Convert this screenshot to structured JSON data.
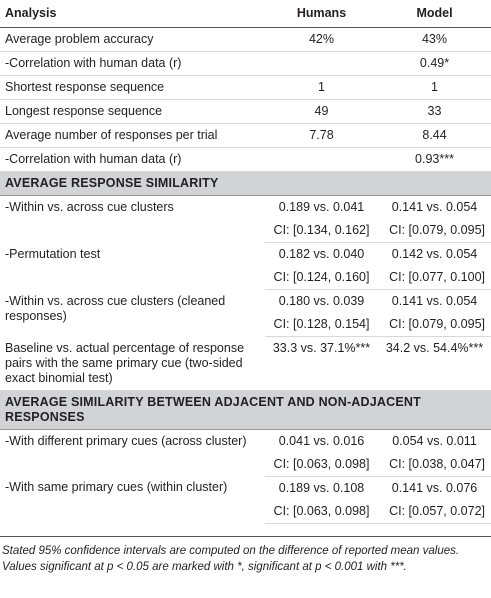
{
  "table": {
    "header": [
      "Analysis",
      "Humans",
      "Model"
    ],
    "rows": [
      {
        "label": "Average problem accuracy",
        "humans": [
          "42%"
        ],
        "model": [
          "43%"
        ]
      },
      {
        "label": "-Correlation with human data (r)",
        "model": [
          "0.49*"
        ]
      },
      {
        "label": "Shortest response sequence",
        "humans": [
          "1"
        ],
        "model": [
          "1"
        ]
      },
      {
        "label": "Longest response sequence",
        "humans": [
          "49"
        ],
        "model": [
          "33"
        ]
      },
      {
        "label": "Average number of responses per trial",
        "humans": [
          "7.78"
        ],
        "model": [
          "8.44"
        ]
      },
      {
        "label": "-Correlation with human data (r)",
        "model": [
          "0.93***"
        ]
      }
    ],
    "sections": [
      {
        "title": "AVERAGE RESPONSE SIMILARITY",
        "rows": [
          {
            "label": "-Within vs. across cue clusters",
            "humans": [
              "0.189 vs. 0.041",
              "CI: [0.134, 0.162]"
            ],
            "model": [
              "0.141 vs. 0.054",
              "CI: [0.079, 0.095]"
            ]
          },
          {
            "label": "-Permutation test",
            "humans": [
              "0.182 vs. 0.040",
              "CI: [0.124, 0.160]"
            ],
            "model": [
              "0.142 vs. 0.054",
              "CI: [0.077, 0.100]"
            ]
          },
          {
            "label": "-Within vs. across cue clusters (cleaned responses)",
            "humans": [
              "0.180 vs. 0.039",
              "CI: [0.128, 0.154]"
            ],
            "model": [
              "0.141 vs. 0.054",
              "CI: [0.079, 0.095]"
            ]
          },
          {
            "label": "Baseline vs. actual percentage of response pairs with the same primary cue (two-sided exact binomial test)",
            "humans": [
              "33.3 vs. 37.1%***"
            ],
            "model": [
              "34.2 vs. 54.4%***"
            ]
          }
        ]
      },
      {
        "title": "AVERAGE SIMILARITY BETWEEN ADJACENT AND NON-ADJACENT RESPONSES",
        "rows": [
          {
            "label": "-With different primary cues (across cluster)",
            "humans": [
              "0.041 vs. 0.016",
              "CI: [0.063, 0.098]"
            ],
            "model": [
              "0.054 vs. 0.011",
              "CI: [0.038, 0.047]"
            ]
          },
          {
            "label": "-With same primary cues (within cluster)",
            "humans": [
              "0.189 vs. 0.108",
              "CI: [0.063, 0.098]"
            ],
            "model": [
              "0.141 vs. 0.076",
              "CI: [0.057, 0.072]"
            ]
          }
        ]
      }
    ],
    "note": "Stated 95% confidence intervals are computed on the difference of reported mean values. Values significant at p < 0.05 are marked with *, significant at p < 0.001 with ***."
  }
}
